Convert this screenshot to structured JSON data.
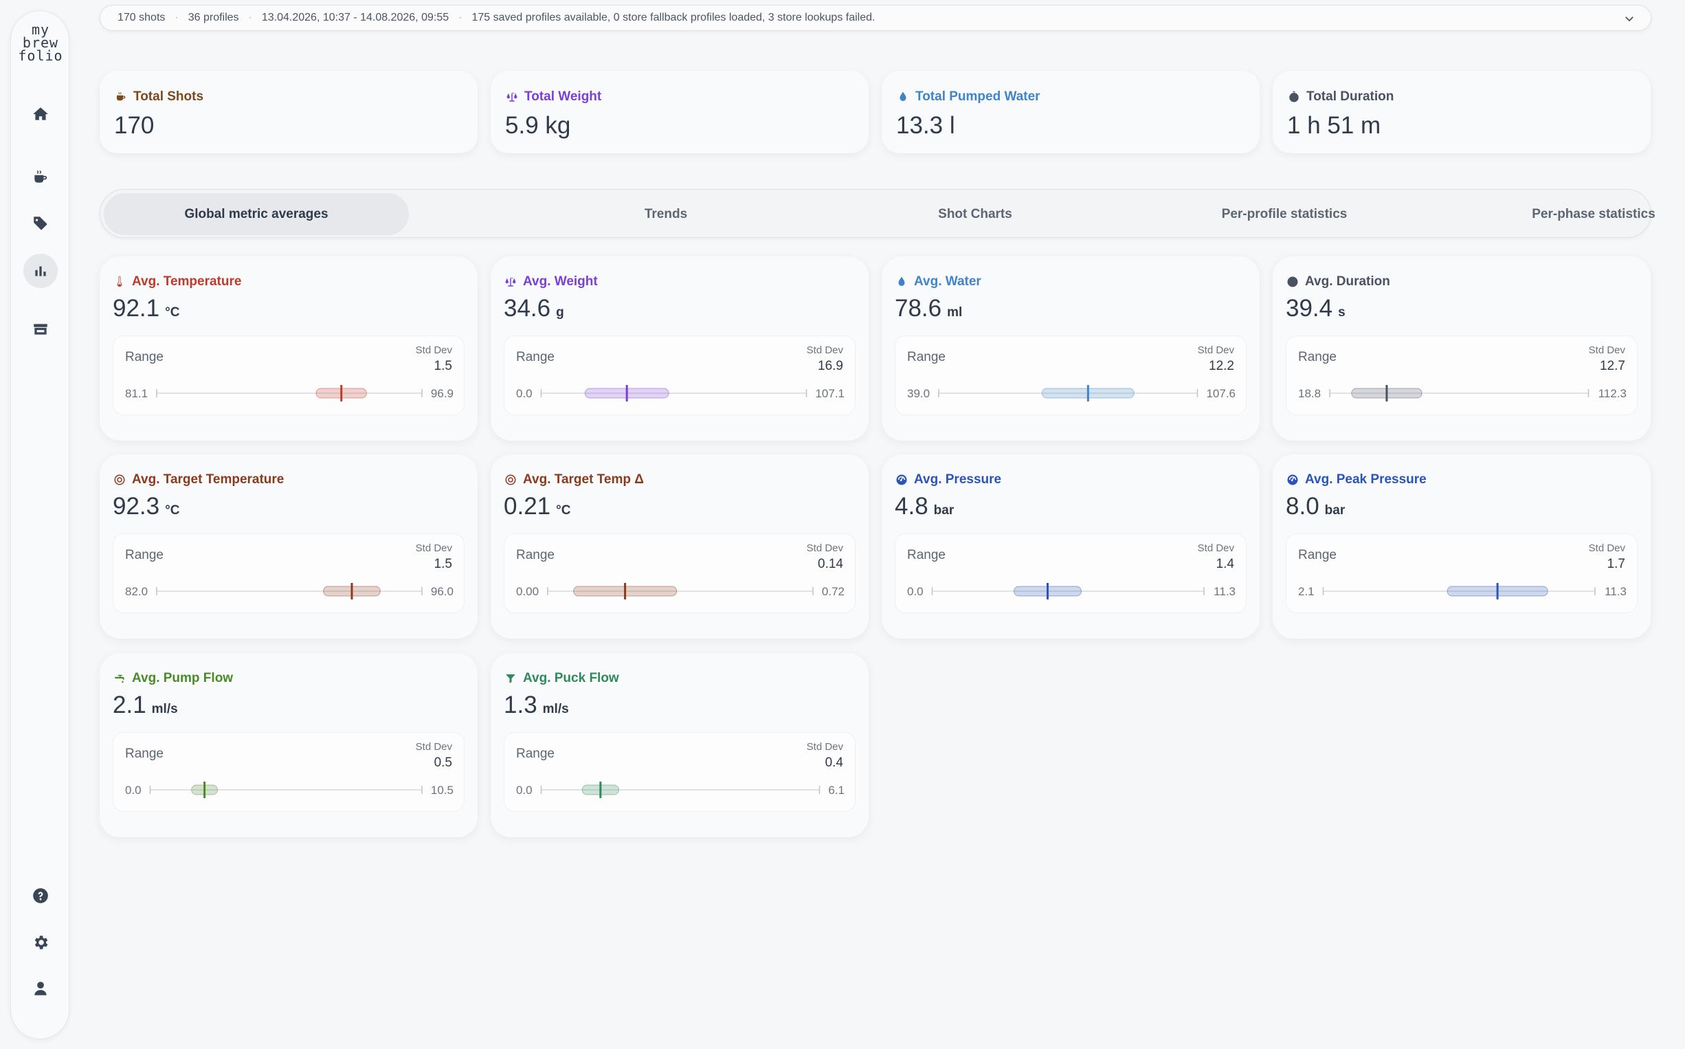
{
  "logo": [
    "my",
    "brew",
    "folio"
  ],
  "sidebar": {
    "items": [
      {
        "name": "home",
        "icon": "home-icon"
      },
      {
        "name": "shots",
        "icon": "coffee-cup-icon"
      },
      {
        "name": "tags",
        "icon": "tag-icon"
      },
      {
        "name": "statistics",
        "icon": "bar-chart-icon",
        "active": true
      },
      {
        "name": "store",
        "icon": "store-icon"
      },
      {
        "name": "help",
        "icon": "help-icon"
      },
      {
        "name": "settings",
        "icon": "gear-icon"
      },
      {
        "name": "profile",
        "icon": "user-icon"
      }
    ]
  },
  "summary": {
    "shots": "170 shots",
    "profiles": "36 profiles",
    "date_range": "13.04.2026, 10:37 - 14.08.2026, 09:55",
    "status": "175 saved profiles available, 0 store fallback profiles loaded, 3 store lookups failed."
  },
  "stats": [
    {
      "label": "Total Shots",
      "value": "170",
      "color": "#7a4a1c",
      "icon": "coffee-icon"
    },
    {
      "label": "Total Weight",
      "value": "5.9 kg",
      "color": "#7a3fd6",
      "icon": "scale-icon"
    },
    {
      "label": "Total Pumped Water",
      "value": "13.3 l",
      "color": "#3f84c8",
      "icon": "droplet-icon"
    },
    {
      "label": "Total Duration",
      "value": "1 h 51 m",
      "color": "#4a5262",
      "icon": "stopwatch-icon"
    }
  ],
  "tabs": [
    {
      "label": "Global metric averages",
      "active": true
    },
    {
      "label": "Trends"
    },
    {
      "label": "Shot Charts"
    },
    {
      "label": "Per-profile statistics"
    },
    {
      "label": "Per-phase statistics"
    }
  ],
  "range_label": "Range",
  "std_dev_label": "Std Dev",
  "metrics": [
    {
      "title": "Avg. Temperature",
      "value": "92.1",
      "unit": "°C",
      "std": "1.5",
      "min": "81.1",
      "max": "96.9",
      "mean": 92.1,
      "sd": 1.5,
      "lo": 81.1,
      "hi": 96.9,
      "color": "#c0392b",
      "icon": "thermometer-icon"
    },
    {
      "title": "Avg. Weight",
      "value": "34.6",
      "unit": "g",
      "std": "16.9",
      "min": "0.0",
      "max": "107.1",
      "mean": 34.6,
      "sd": 16.9,
      "lo": 0,
      "hi": 107.1,
      "color": "#7a3fd6",
      "icon": "scale-icon"
    },
    {
      "title": "Avg. Water",
      "value": "78.6",
      "unit": "ml",
      "std": "12.2",
      "min": "39.0",
      "max": "107.6",
      "mean": 78.6,
      "sd": 12.2,
      "lo": 39,
      "hi": 107.6,
      "color": "#3f84c8",
      "icon": "droplet-icon"
    },
    {
      "title": "Avg. Duration",
      "value": "39.4",
      "unit": "s",
      "std": "12.7",
      "min": "18.8",
      "max": "112.3",
      "mean": 39.4,
      "sd": 12.7,
      "lo": 18.8,
      "hi": 112.3,
      "color": "#4a5262",
      "icon": "clock-icon"
    },
    {
      "title": "Avg. Target Temperature",
      "value": "92.3",
      "unit": "°C",
      "std": "1.5",
      "min": "82.0",
      "max": "96.0",
      "mean": 92.3,
      "sd": 1.5,
      "lo": 82,
      "hi": 96,
      "color": "#8b3a1c",
      "icon": "target-icon"
    },
    {
      "title": "Avg. Target Temp Δ",
      "value": "0.21",
      "unit": "°C",
      "std": "0.14",
      "min": "0.00",
      "max": "0.72",
      "mean": 0.21,
      "sd": 0.14,
      "lo": 0,
      "hi": 0.72,
      "color": "#8b3a1c",
      "icon": "target-icon"
    },
    {
      "title": "Avg. Pressure",
      "value": "4.8",
      "unit": "bar",
      "std": "1.4",
      "min": "0.0",
      "max": "11.3",
      "mean": 4.8,
      "sd": 1.4,
      "lo": 0,
      "hi": 11.3,
      "color": "#2a55b8",
      "icon": "gauge-icon"
    },
    {
      "title": "Avg. Peak Pressure",
      "value": "8.0",
      "unit": "bar",
      "std": "1.7",
      "min": "2.1",
      "max": "11.3",
      "mean": 8.0,
      "sd": 1.7,
      "lo": 2.1,
      "hi": 11.3,
      "color": "#2a55b8",
      "icon": "gauge-icon"
    },
    {
      "title": "Avg. Pump Flow",
      "value": "2.1",
      "unit": "ml/s",
      "std": "0.5",
      "min": "0.0",
      "max": "10.5",
      "mean": 2.1,
      "sd": 0.5,
      "lo": 0,
      "hi": 10.5,
      "color": "#4a8a2a",
      "icon": "faucet-icon"
    },
    {
      "title": "Avg. Puck Flow",
      "value": "1.3",
      "unit": "ml/s",
      "std": "0.4",
      "min": "0.0",
      "max": "6.1",
      "mean": 1.3,
      "sd": 0.4,
      "lo": 0,
      "hi": 6.1,
      "color": "#2e8a5a",
      "icon": "filter-icon"
    }
  ]
}
